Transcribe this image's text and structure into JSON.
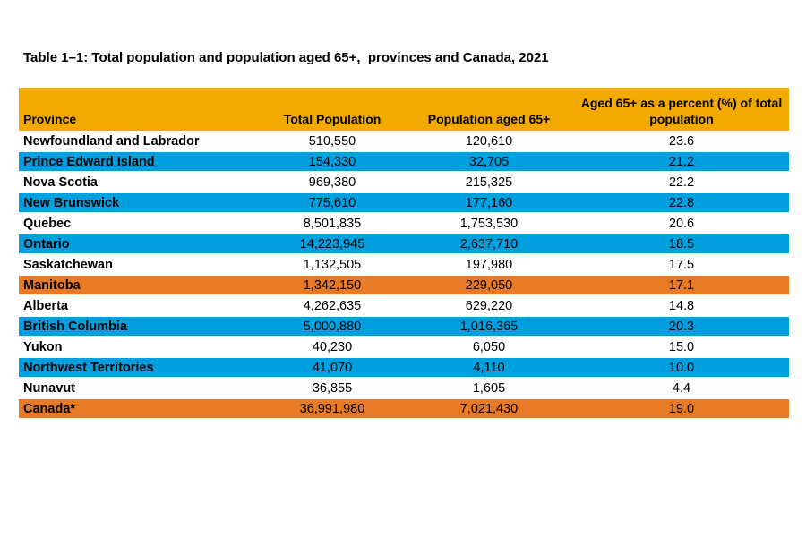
{
  "title": "Table 1–1: Total population and population aged 65+,  provinces and Canada, 2021",
  "colors": {
    "header_bg": "#F2A900",
    "blue_row_bg": "#009FE0",
    "orange_row_bg": "#E87A25",
    "text": "#000000",
    "background": "#FFFFFF"
  },
  "chart_data": {
    "type": "table",
    "title": "Table 1–1: Total population and population aged 65+,  provinces and Canada, 2021",
    "columns": [
      "Province",
      "Total Population",
      "Population aged 65+",
      "Aged 65+ as a percent (%) of total population"
    ],
    "rows": [
      {
        "province": "Newfoundland and Labrador",
        "total_population": "510,550",
        "population_65": "120,610",
        "percent_65": "23.6",
        "highlight": "none"
      },
      {
        "province": "Prince Edward Island",
        "total_population": "154,330",
        "population_65": "32,705",
        "percent_65": "21.2",
        "highlight": "blue"
      },
      {
        "province": "Nova Scotia",
        "total_population": "969,380",
        "population_65": "215,325",
        "percent_65": "22.2",
        "highlight": "none"
      },
      {
        "province": "New Brunswick",
        "total_population": "775,610",
        "population_65": "177,160",
        "percent_65": "22.8",
        "highlight": "blue"
      },
      {
        "province": "Quebec",
        "total_population": "8,501,835",
        "population_65": "1,753,530",
        "percent_65": "20.6",
        "highlight": "none"
      },
      {
        "province": "Ontario",
        "total_population": "14,223,945",
        "population_65": "2,637,710",
        "percent_65": "18.5",
        "highlight": "blue"
      },
      {
        "province": "Saskatchewan",
        "total_population": "1,132,505",
        "population_65": "197,980",
        "percent_65": "17.5",
        "highlight": "none"
      },
      {
        "province": "Manitoba",
        "total_population": "1,342,150",
        "population_65": "229,050",
        "percent_65": "17.1",
        "highlight": "orange"
      },
      {
        "province": "Alberta",
        "total_population": "4,262,635",
        "population_65": "629,220",
        "percent_65": "14.8",
        "highlight": "none"
      },
      {
        "province": "British Columbia",
        "total_population": "5,000,880",
        "population_65": "1,016,365",
        "percent_65": "20.3",
        "highlight": "blue"
      },
      {
        "province": "Yukon",
        "total_population": "40,230",
        "population_65": "6,050",
        "percent_65": "15.0",
        "highlight": "none"
      },
      {
        "province": "Northwest Territories",
        "total_population": "41,070",
        "population_65": "4,110",
        "percent_65": "10.0",
        "highlight": "blue"
      },
      {
        "province": "Nunavut",
        "total_population": "36,855",
        "population_65": "1,605",
        "percent_65": "4.4",
        "highlight": "none"
      },
      {
        "province": "Canada*",
        "total_population": "36,991,980",
        "population_65": "7,021,430",
        "percent_65": "19.0",
        "highlight": "orange"
      }
    ]
  }
}
